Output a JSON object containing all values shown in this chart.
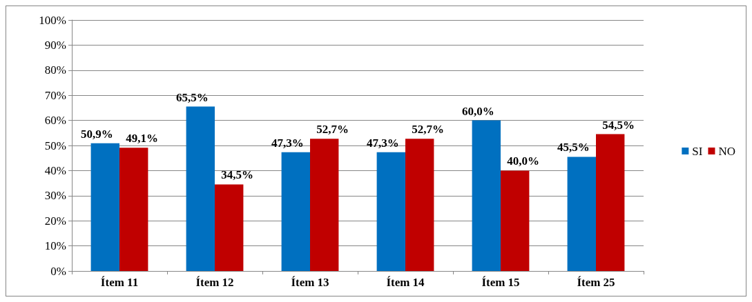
{
  "chart_data": {
    "type": "bar",
    "categories": [
      "Ítem 11",
      "Ítem 12",
      "Ítem 13",
      "Ítem 14",
      "Ítem 15",
      "Ítem 25"
    ],
    "series": [
      {
        "name": "SI",
        "color": "#0070c0",
        "values": [
          50.9,
          65.5,
          47.3,
          47.3,
          60.0,
          45.5
        ],
        "value_labels": [
          "50,9%",
          "65,5%",
          "47,3%",
          "47,3%",
          "60,0%",
          "45,5%"
        ]
      },
      {
        "name": "NO",
        "color": "#c00000",
        "values": [
          49.1,
          34.5,
          52.7,
          52.7,
          40.0,
          54.5
        ],
        "value_labels": [
          "49,1%",
          "34,5%",
          "52,7%",
          "52,7%",
          "40,0%",
          "54,5%"
        ]
      }
    ],
    "ylim": [
      0,
      100
    ],
    "yticks": [
      {
        "value": 0,
        "label": "0%"
      },
      {
        "value": 10,
        "label": "10%"
      },
      {
        "value": 20,
        "label": "20%"
      },
      {
        "value": 30,
        "label": "30%"
      },
      {
        "value": 40,
        "label": "40%"
      },
      {
        "value": 50,
        "label": "50%"
      },
      {
        "value": 60,
        "label": "60%"
      },
      {
        "value": 70,
        "label": "70%"
      },
      {
        "value": 80,
        "label": "80%"
      },
      {
        "value": 90,
        "label": "90%"
      },
      {
        "value": 100,
        "label": "100%"
      }
    ],
    "grid": "y",
    "legend": "right"
  }
}
